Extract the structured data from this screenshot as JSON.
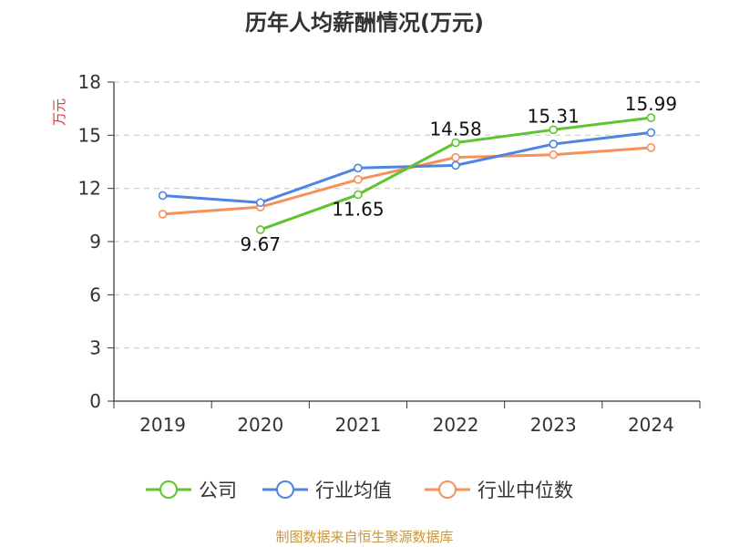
{
  "chart_data": {
    "type": "line",
    "title": "历年人均薪酬情况(万元)",
    "ylabel": "万元",
    "xlabel": "",
    "categories": [
      "2019",
      "2020",
      "2021",
      "2022",
      "2023",
      "2024"
    ],
    "ylim": [
      0,
      18
    ],
    "yticks": [
      0,
      3,
      6,
      9,
      12,
      15,
      18
    ],
    "grid": true,
    "legend_position": "bottom",
    "series": [
      {
        "name": "公司",
        "color": "#5ec42f",
        "values": [
          null,
          9.67,
          11.65,
          14.58,
          15.31,
          15.99
        ],
        "labels": [
          "",
          "9.67",
          "11.65",
          "14.58",
          "15.31",
          "15.99"
        ]
      },
      {
        "name": "行业均值",
        "color": "#4f84e0",
        "values": [
          11.6,
          11.2,
          13.15,
          13.3,
          14.5,
          15.15
        ]
      },
      {
        "name": "行业中位数",
        "color": "#f5915a",
        "values": [
          10.55,
          10.95,
          12.5,
          13.75,
          13.9,
          14.3
        ]
      }
    ],
    "source": "制图数据来自恒生聚源数据库",
    "source_color": "#c8963c",
    "ylabel_color": "#d9363e"
  }
}
